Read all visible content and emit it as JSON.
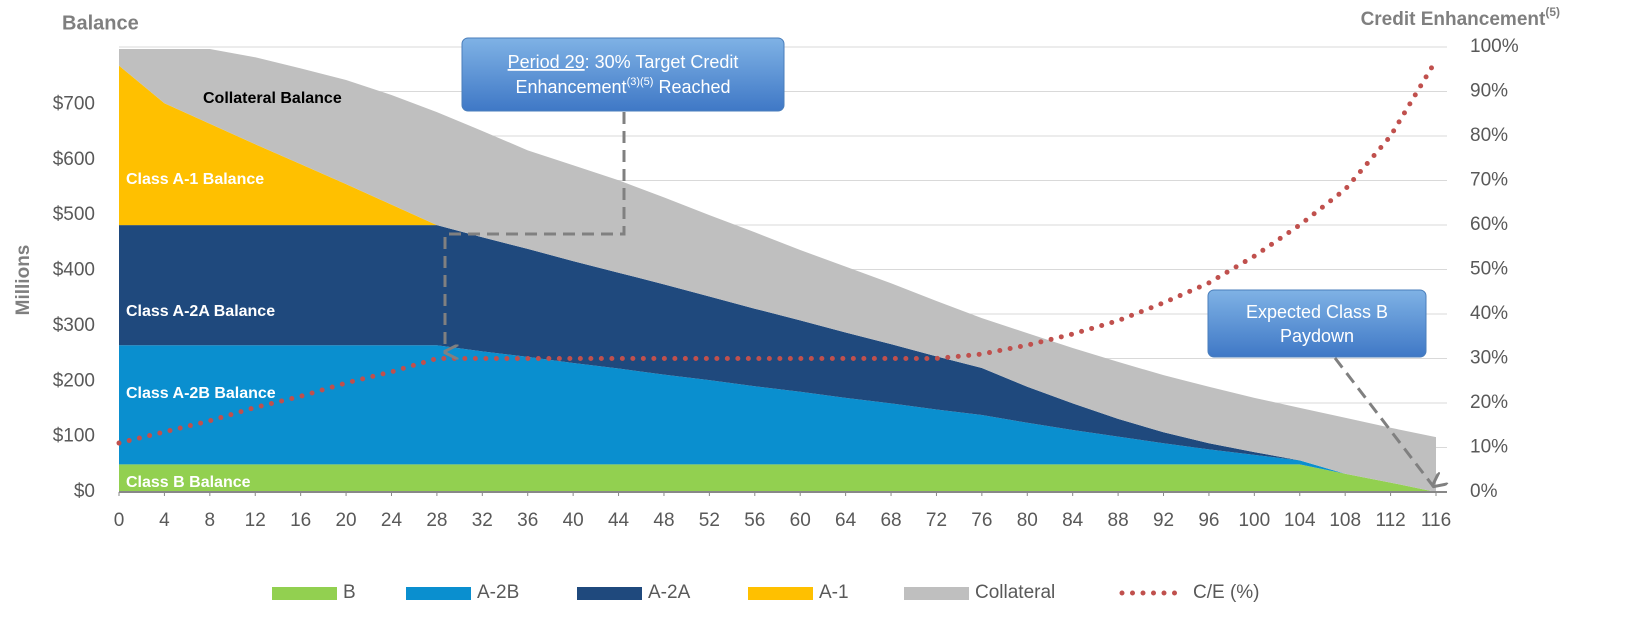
{
  "chart_data": {
    "type": "area",
    "y_title": "Balance",
    "y_label": "Millions",
    "y2_title": "Credit Enhancement",
    "y2_title_sup": "(5)",
    "x": [
      0,
      4,
      8,
      12,
      16,
      20,
      24,
      28,
      32,
      36,
      40,
      44,
      48,
      52,
      56,
      60,
      64,
      68,
      72,
      76,
      80,
      84,
      88,
      92,
      96,
      100,
      104,
      108,
      112,
      116
    ],
    "xlim": [
      0,
      116
    ],
    "xticks": [
      0,
      4,
      8,
      12,
      16,
      20,
      24,
      28,
      32,
      36,
      40,
      44,
      48,
      52,
      56,
      60,
      64,
      68,
      72,
      76,
      80,
      84,
      88,
      92,
      96,
      100,
      104,
      108,
      112,
      116
    ],
    "ylim": [
      0,
      800
    ],
    "yticks": [
      {
        "value": 0,
        "label": "$0"
      },
      {
        "value": 100,
        "label": "$100"
      },
      {
        "value": 200,
        "label": "$200"
      },
      {
        "value": 300,
        "label": "$300"
      },
      {
        "value": 400,
        "label": "$400"
      },
      {
        "value": 500,
        "label": "$500"
      },
      {
        "value": 600,
        "label": "$600"
      },
      {
        "value": 700,
        "label": "$700"
      }
    ],
    "y2lim": [
      0,
      100
    ],
    "y2ticks": [
      {
        "value": 0,
        "label": "0%"
      },
      {
        "value": 10,
        "label": "10%"
      },
      {
        "value": 20,
        "label": "20%"
      },
      {
        "value": 30,
        "label": "30%"
      },
      {
        "value": 40,
        "label": "40%"
      },
      {
        "value": 50,
        "label": "50%"
      },
      {
        "value": 60,
        "label": "60%"
      },
      {
        "value": 70,
        "label": "70%"
      },
      {
        "value": 80,
        "label": "80%"
      },
      {
        "value": 90,
        "label": "90%"
      },
      {
        "value": 100,
        "label": "100%"
      }
    ],
    "grid": true,
    "series": [
      {
        "name": "B",
        "label": "Class B Balance",
        "color": "#92d050",
        "values": [
          50,
          50,
          50,
          50,
          50,
          50,
          50,
          50,
          50,
          50,
          50,
          50,
          50,
          50,
          50,
          50,
          50,
          50,
          50,
          50,
          50,
          50,
          50,
          50,
          50,
          50,
          50,
          33,
          17,
          0
        ]
      },
      {
        "name": "A-2B",
        "label": "Class A-2B Balance",
        "color": "#0a8fcf",
        "values": [
          215,
          215,
          215,
          215,
          215,
          215,
          215,
          215,
          204,
          194,
          183,
          173,
          162,
          152,
          141,
          131,
          120,
          110,
          99,
          89,
          75,
          62,
          50,
          38,
          27,
          17,
          7,
          0,
          0,
          0
        ]
      },
      {
        "name": "A-2A",
        "label": "Class A-2A Balance",
        "color": "#1f497d",
        "values": [
          217,
          217,
          217,
          217,
          217,
          217,
          217,
          217,
          206,
          195,
          184,
          173,
          163,
          151,
          140,
          129,
          118,
          107,
          96,
          85,
          65,
          48,
          32,
          20,
          11,
          5,
          0,
          0,
          0,
          0
        ]
      },
      {
        "name": "A-1",
        "label": "Class A-1 Balance",
        "color": "#ffc000",
        "values": [
          288,
          220,
          183,
          146,
          110,
          74,
          37,
          0,
          0,
          0,
          0,
          0,
          0,
          0,
          0,
          0,
          0,
          0,
          0,
          0,
          0,
          0,
          0,
          0,
          0,
          0,
          0,
          0,
          0,
          0
        ]
      },
      {
        "name": "Collateral",
        "label": "Collateral Balance",
        "color": "#bfbfbf",
        "values": [
          30,
          98,
          135,
          157,
          173,
          188,
          198,
          204,
          192,
          178,
          173,
          167,
          157,
          147,
          138,
          127,
          119,
          110,
          100,
          90,
          97,
          100,
          103,
          103,
          102,
          98,
          95,
          101,
          99,
          99
        ]
      },
      {
        "name": "C/E (%)",
        "type": "line",
        "axis": "y2",
        "color": "#c0504d",
        "values": [
          11,
          13.5,
          16,
          19,
          21.5,
          24.5,
          27,
          30,
          30,
          30,
          30,
          30,
          30,
          30,
          30,
          30,
          30,
          30,
          30,
          31,
          33,
          35.5,
          38.5,
          42.5,
          47,
          53,
          60,
          68,
          80,
          97
        ]
      }
    ],
    "annotations": [
      {
        "parts": [
          "Period 29",
          ": 30% Target Credit",
          "Enhancement",
          "(3)(5)",
          " Reached"
        ]
      },
      {
        "lines": [
          "Expected Class B",
          "Paydown"
        ]
      }
    ]
  }
}
